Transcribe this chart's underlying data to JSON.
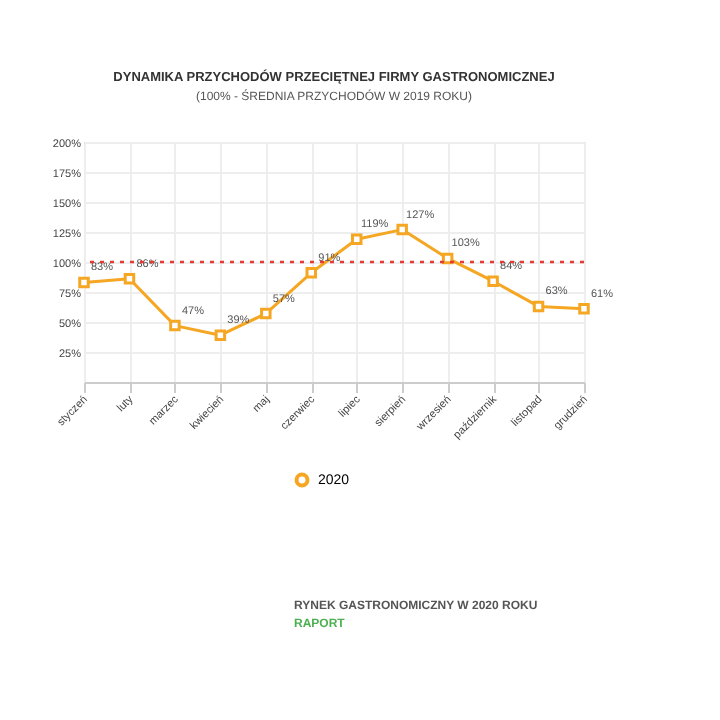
{
  "chart_data": {
    "type": "line",
    "title": "DYNAMIKA PRZYCHODÓW PRZECIĘTNEJ FIRMY GASTRONOMICZNEJ",
    "subtitle": "(100% - ŚREDNIA PRZYCHODÓW W 2019 ROKU)",
    "categories": [
      "styczeń",
      "luty",
      "marzec",
      "kwiecień",
      "maj",
      "czerwiec",
      "lipiec",
      "sierpień",
      "wrzesień",
      "październik",
      "listopad",
      "grudzień"
    ],
    "series": [
      {
        "name": "2020",
        "color": "#f5a623",
        "values": [
          83,
          86,
          47,
          39,
          57,
          91,
          119,
          127,
          103,
          84,
          63,
          61
        ],
        "value_labels": [
          "83%",
          "86%",
          "47%",
          "39%",
          "57%",
          "91%",
          "119%",
          "127%",
          "103%",
          "84%",
          "63%",
          "61%"
        ]
      }
    ],
    "ylim": [
      0,
      200
    ],
    "yticks": [
      {
        "value": 0,
        "label": null
      },
      {
        "value": 25,
        "label": "25%"
      },
      {
        "value": 50,
        "label": "50%"
      },
      {
        "value": 75,
        "label": "75%"
      },
      {
        "value": 100,
        "label": "100%"
      },
      {
        "value": 125,
        "label": "125%"
      },
      {
        "value": 150,
        "label": "150%"
      },
      {
        "value": 175,
        "label": "175%"
      },
      {
        "value": 200,
        "label": "200%"
      }
    ],
    "ref_lines": [
      {
        "axis": "y",
        "value": 100,
        "color": "#e53935",
        "line_style": "dotted"
      }
    ],
    "grid": true,
    "legend": "bottom",
    "marker": "square",
    "line_style": "solid",
    "annotations": [
      "RYNEK GASTRONOMICZNY W 2020 ROKU",
      "RAPORT"
    ]
  }
}
